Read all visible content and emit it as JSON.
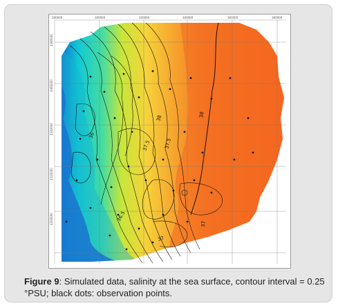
{
  "caption": {
    "lead": "Figure 9",
    "text": ": Simulated data, salinity at the sea surface, contour interval = 0.25 °PSU; black dots: observation points."
  },
  "chart_data": {
    "type": "heatmap",
    "title": "",
    "x_ticks": [
      "280000",
      "300000",
      "320000",
      "340000",
      "360000",
      "380000"
    ],
    "y_ticks": [
      "4380000",
      "4360000",
      "4340000",
      "4320000",
      "4300000"
    ],
    "contour_interval": 0.25,
    "contour_labels": [
      "38",
      "38",
      "37.5",
      "37.5",
      "37",
      "37",
      "36",
      "36.5"
    ],
    "colors": {
      "low": "#1633c9",
      "mid_low": "#10c9d6",
      "mid": "#a6e245",
      "mid_high": "#f6c12b",
      "high": "#f4601e",
      "observation_point": "#111111"
    },
    "grid": true
  }
}
